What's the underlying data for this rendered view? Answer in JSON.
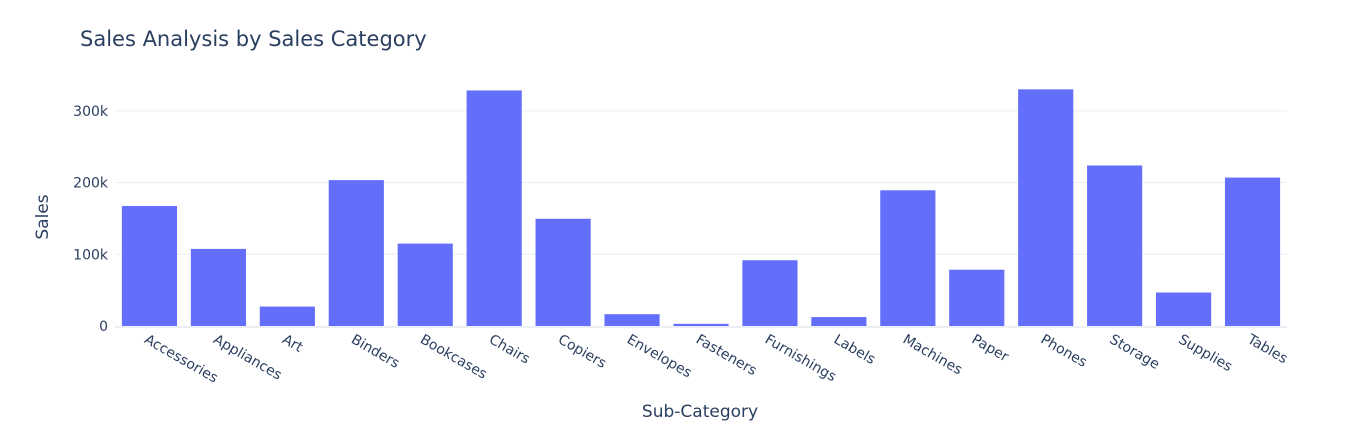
{
  "chart_data": {
    "type": "bar",
    "title": "Sales Analysis by Sales Category",
    "xlabel": "Sub-Category",
    "ylabel": "Sales",
    "categories": [
      "Accessories",
      "Appliances",
      "Art",
      "Binders",
      "Bookcases",
      "Chairs",
      "Copiers",
      "Envelopes",
      "Fasteners",
      "Furnishings",
      "Labels",
      "Machines",
      "Paper",
      "Phones",
      "Storage",
      "Supplies",
      "Tables"
    ],
    "values": [
      167380,
      107532,
      27119,
      203413,
      114880,
      328449,
      149528,
      16476,
      3024,
      91705,
      12486,
      189239,
      78479,
      330007,
      223844,
      46674,
      206966
    ],
    "ylim": [
      0,
      350000
    ],
    "yticks": [
      0,
      100000,
      200000,
      300000
    ],
    "ytick_labels": [
      "0",
      "100k",
      "200k",
      "300k"
    ],
    "bar_color": "#636efa",
    "grid": true,
    "legend": "none"
  }
}
